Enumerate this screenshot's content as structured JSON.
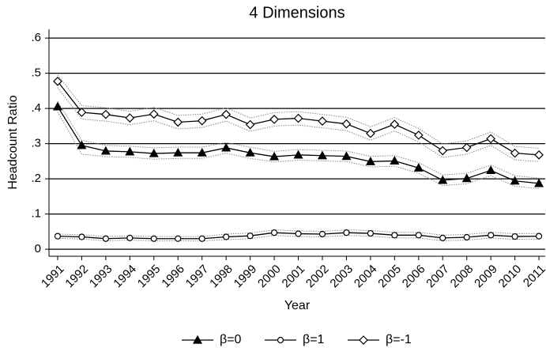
{
  "chart_data": {
    "type": "line",
    "title": "4 Dimensions",
    "x_label": "Year",
    "y_label": "Headcount Ratio",
    "x": [
      1991,
      1992,
      1993,
      1994,
      1995,
      1996,
      1997,
      1998,
      1999,
      2000,
      2001,
      2002,
      2003,
      2004,
      2005,
      2006,
      2007,
      2008,
      2009,
      2010,
      2011
    ],
    "xlim": [
      1990.64,
      2011.26
    ],
    "xticks": [
      1991,
      1992,
      1993,
      1994,
      1995,
      1996,
      1997,
      1998,
      1999,
      2000,
      2001,
      2002,
      2003,
      2004,
      2005,
      2006,
      2007,
      2008,
      2009,
      2010,
      2011
    ],
    "ylim": [
      -0.02,
      0.625
    ],
    "yticks": [
      0,
      {
        "value": 0.1,
        "label": ".1"
      },
      {
        "value": 0.2,
        "label": ".2"
      },
      {
        "value": 0.3,
        "label": ".3"
      },
      {
        "value": 0.4,
        "label": ".4"
      },
      {
        "value": 0.5,
        "label": ".5"
      },
      {
        "value": 0.6,
        "label": ".6"
      }
    ],
    "grid": true,
    "legend": "bottom",
    "series": [
      {
        "name": "β=0",
        "color": "#000000",
        "marker": "triangle",
        "values": [
          0.405,
          0.295,
          0.279,
          0.277,
          0.272,
          0.274,
          0.274,
          0.288,
          0.274,
          0.263,
          0.268,
          0.266,
          0.264,
          0.249,
          0.251,
          0.231,
          0.196,
          0.201,
          0.224,
          0.194,
          0.187
        ],
        "upper": [
          0.42,
          0.31,
          0.295,
          0.293,
          0.288,
          0.29,
          0.29,
          0.303,
          0.29,
          0.278,
          0.283,
          0.281,
          0.279,
          0.264,
          0.266,
          0.246,
          0.211,
          0.216,
          0.239,
          0.209,
          0.202
        ],
        "lower": [
          0.39,
          0.27,
          0.263,
          0.261,
          0.256,
          0.258,
          0.258,
          0.273,
          0.258,
          0.248,
          0.253,
          0.251,
          0.249,
          0.234,
          0.236,
          0.216,
          0.181,
          0.186,
          0.209,
          0.179,
          0.172
        ]
      },
      {
        "name": "β=1",
        "color": "#000000",
        "marker": "circle",
        "values": [
          0.037,
          0.035,
          0.03,
          0.032,
          0.03,
          0.03,
          0.03,
          0.035,
          0.038,
          0.047,
          0.044,
          0.043,
          0.047,
          0.045,
          0.04,
          0.04,
          0.032,
          0.034,
          0.04,
          0.036,
          0.037
        ],
        "upper": [
          0.043,
          0.041,
          0.036,
          0.038,
          0.036,
          0.036,
          0.036,
          0.043,
          0.046,
          0.055,
          0.052,
          0.051,
          0.055,
          0.053,
          0.048,
          0.048,
          0.04,
          0.042,
          0.048,
          0.044,
          0.045
        ],
        "lower": [
          0.031,
          0.029,
          0.024,
          0.026,
          0.024,
          0.024,
          0.024,
          0.027,
          0.03,
          0.039,
          0.036,
          0.035,
          0.039,
          0.037,
          0.032,
          0.032,
          0.024,
          0.026,
          0.032,
          0.028,
          0.029
        ]
      },
      {
        "name": "β=-1",
        "color": "#000000",
        "marker": "diamond",
        "values": [
          0.477,
          0.389,
          0.383,
          0.373,
          0.384,
          0.361,
          0.365,
          0.383,
          0.354,
          0.369,
          0.372,
          0.364,
          0.356,
          0.329,
          0.355,
          0.324,
          0.28,
          0.289,
          0.314,
          0.273,
          0.268
        ],
        "upper": [
          0.495,
          0.408,
          0.402,
          0.392,
          0.403,
          0.38,
          0.384,
          0.402,
          0.373,
          0.388,
          0.391,
          0.383,
          0.375,
          0.348,
          0.374,
          0.343,
          0.299,
          0.308,
          0.333,
          0.292,
          0.287
        ],
        "lower": [
          0.459,
          0.37,
          0.364,
          0.354,
          0.365,
          0.342,
          0.346,
          0.364,
          0.335,
          0.35,
          0.353,
          0.345,
          0.337,
          0.31,
          0.336,
          0.305,
          0.261,
          0.27,
          0.295,
          0.254,
          0.249
        ]
      }
    ]
  }
}
